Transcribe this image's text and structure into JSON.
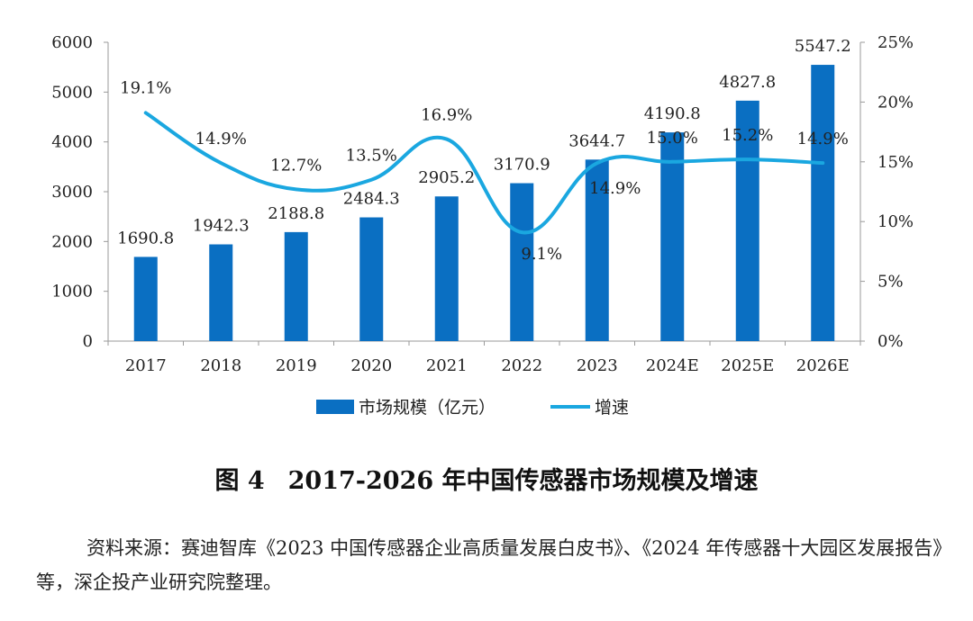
{
  "chart_data": {
    "type": "bar",
    "categories": [
      "2017",
      "2018",
      "2019",
      "2020",
      "2021",
      "2022",
      "2023",
      "2024E",
      "2025E",
      "2026E"
    ],
    "series": [
      {
        "name": "市场规模（亿元）",
        "type": "bar",
        "axis": "left",
        "values": [
          1690.8,
          1942.3,
          2188.8,
          2484.3,
          2905.2,
          3170.9,
          3644.7,
          4190.8,
          4827.8,
          5547.2
        ],
        "labels": [
          "1690.8",
          "1942.3",
          "2188.8",
          "2484.3",
          "2905.2",
          "3170.9",
          "3644.7",
          "4190.8",
          "4827.8",
          "5547.2"
        ],
        "color": "#0a6fc2"
      },
      {
        "name": "增速",
        "type": "line",
        "axis": "right",
        "values": [
          19.1,
          14.9,
          12.7,
          13.5,
          16.9,
          9.1,
          14.9,
          15.0,
          15.2,
          14.9
        ],
        "labels": [
          "19.1%",
          "14.9%",
          "12.7%",
          "13.5%",
          "16.9%",
          "9.1%",
          "14.9%",
          "15.0%",
          "15.2%",
          "14.9%"
        ],
        "color": "#1aa7e0"
      }
    ],
    "y_left": {
      "ylim": [
        0,
        6000
      ],
      "ticks": [
        "0",
        "1000",
        "2000",
        "3000",
        "4000",
        "5000",
        "6000"
      ]
    },
    "y_right": {
      "ylim": [
        0,
        25
      ],
      "ticks": [
        "0%",
        "5%",
        "10%",
        "15%",
        "20%",
        "25%"
      ]
    },
    "grid": false,
    "legend_position": "bottom"
  },
  "caption": {
    "figure_number": "图 4",
    "title": "2017-2026 年中国传感器市场规模及增速"
  },
  "source_note": "资料来源：赛迪智库《2023 中国传感器企业高质量发展白皮书》、《2024 年传感器十大园区发展报告》等，深企投产业研究院整理。"
}
